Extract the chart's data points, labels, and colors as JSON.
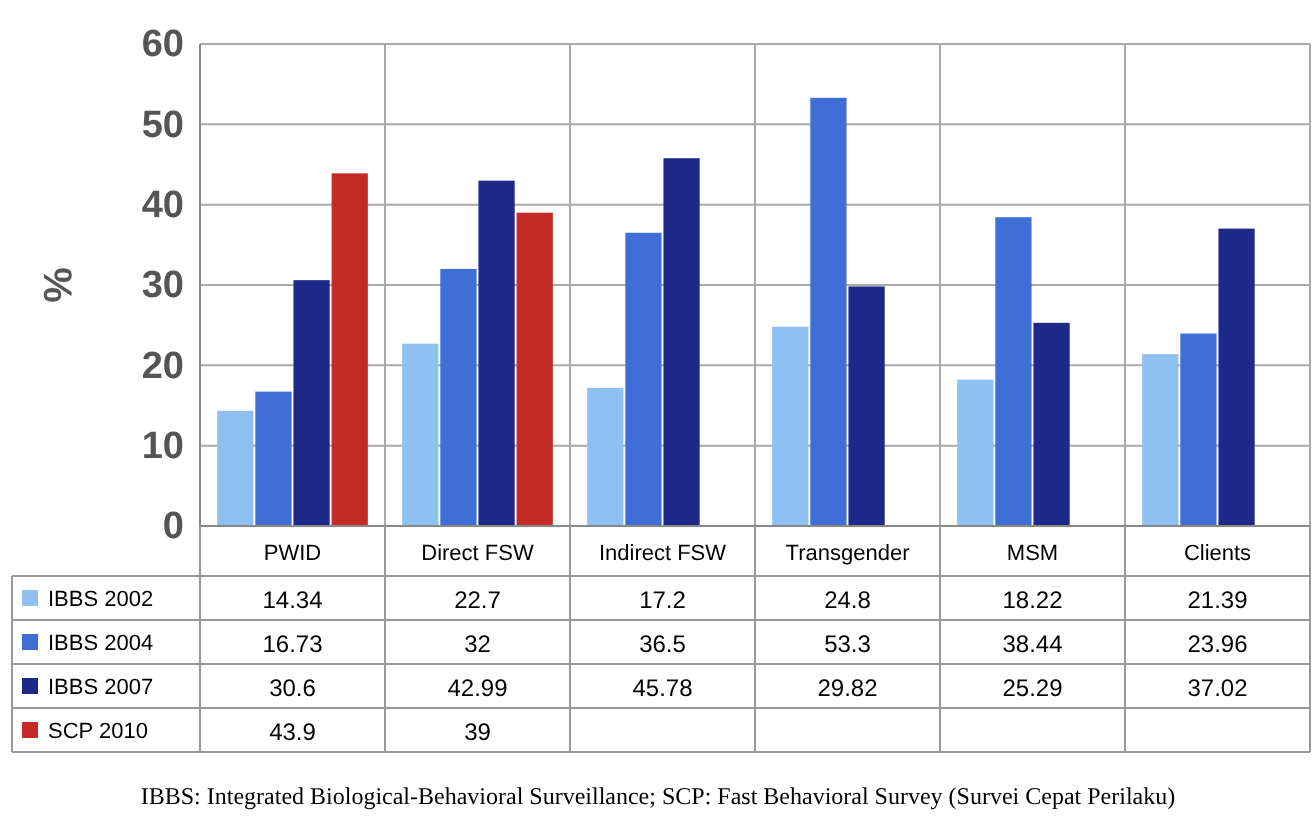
{
  "chart_data": {
    "type": "bar",
    "ylabel": "%",
    "categories": [
      "PWID",
      "Direct FSW",
      "Indirect FSW",
      "Transgender",
      "MSM",
      "Clients"
    ],
    "series": [
      {
        "name": "IBBS 2002",
        "color": "#8ec0f2",
        "values": [
          14.34,
          22.7,
          17.2,
          24.8,
          18.22,
          21.39
        ]
      },
      {
        "name": "IBBS 2004",
        "color": "#3f6fd6",
        "values": [
          16.73,
          32,
          36.5,
          53.3,
          38.44,
          23.96
        ]
      },
      {
        "name": "IBBS 2007",
        "color": "#1d2888",
        "values": [
          30.6,
          42.99,
          45.78,
          29.82,
          25.29,
          37.02
        ]
      },
      {
        "name": "SCP 2010",
        "color": "#c42a26",
        "values": [
          43.9,
          39,
          null,
          null,
          null,
          null
        ]
      }
    ],
    "ylim": [
      0,
      60
    ],
    "yticks": [
      0,
      10,
      20,
      30,
      40,
      50,
      60
    ],
    "grid": "y",
    "legend": "bottom",
    "data_labels": true,
    "annotations": [
      "IBBS: Integrated Biological-Behavioral Surveillance; SCP: Fast Behavioral Survey (Survei Cepat Perilaku)"
    ]
  }
}
